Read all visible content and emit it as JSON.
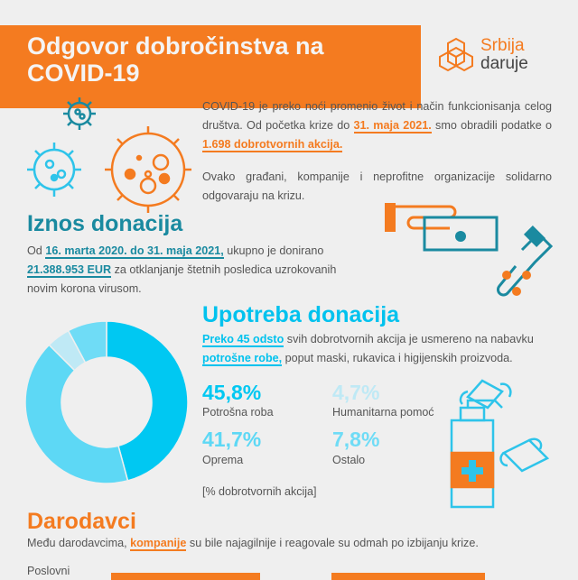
{
  "header": {
    "title_line1": "Odgovor dobročinstva na",
    "title_line2": "COVID-19",
    "logo_top": "Srbija",
    "logo_bottom": "daruje"
  },
  "intro": {
    "p1_a": "COVID-19 je preko noći promenio život i način funkcionisanja celog društva. Od početka krize do ",
    "p1_date": "31. maja 2021.",
    "p1_b": " smo obradili podatke o ",
    "p1_count": "1.698 dobrotvornih akcija.",
    "p2": "Ovako građani, kompanije i neprofitne organizacije solidarno odgovaraju na krizu."
  },
  "iznos": {
    "heading": "Iznos donacija",
    "a": "Od ",
    "dates": "16. marta 2020. do 31. maja 2021,",
    "b": " ukupno je donirano ",
    "amount": "21.388.953 EUR",
    "c": " za otklanjanje štetnih posledica uzrokovanih novim korona virusom."
  },
  "upotreba": {
    "heading": "Upotreba donacija",
    "hl1": "Preko 45 odsto",
    "a": " svih dobrotvornih akcija je usmereno na nabavku ",
    "hl2": "potrošne robe,",
    "b": " poput maski, rukavica i higijenskih proizvoda.",
    "unit_note": "[% dobrotvornih akcija]"
  },
  "chart_data": {
    "type": "pie",
    "donut": true,
    "categories": [
      "Potrošna roba",
      "Oprema",
      "Humanitarna pomoć",
      "Ostalo"
    ],
    "values": [
      45.8,
      41.7,
      4.7,
      7.8
    ],
    "value_labels": [
      "45,8%",
      "41,7%",
      "4,7%",
      "7,8%"
    ],
    "colors": [
      "#00c8f2",
      "#5dd8f5",
      "#bfe9f5",
      "#6fdcf6"
    ]
  },
  "darodavci": {
    "heading": "Darodavci",
    "a": "Među darodavcima, ",
    "hl": "kompanije",
    "b": " su bile najagilnije i reagovale su odmah po izbijanju krize.",
    "row_label": "Poslovni"
  },
  "colors": {
    "orange": "#f47b20",
    "teal": "#1a8aa0",
    "cyan": "#00c2ee",
    "background": "#efefef"
  }
}
